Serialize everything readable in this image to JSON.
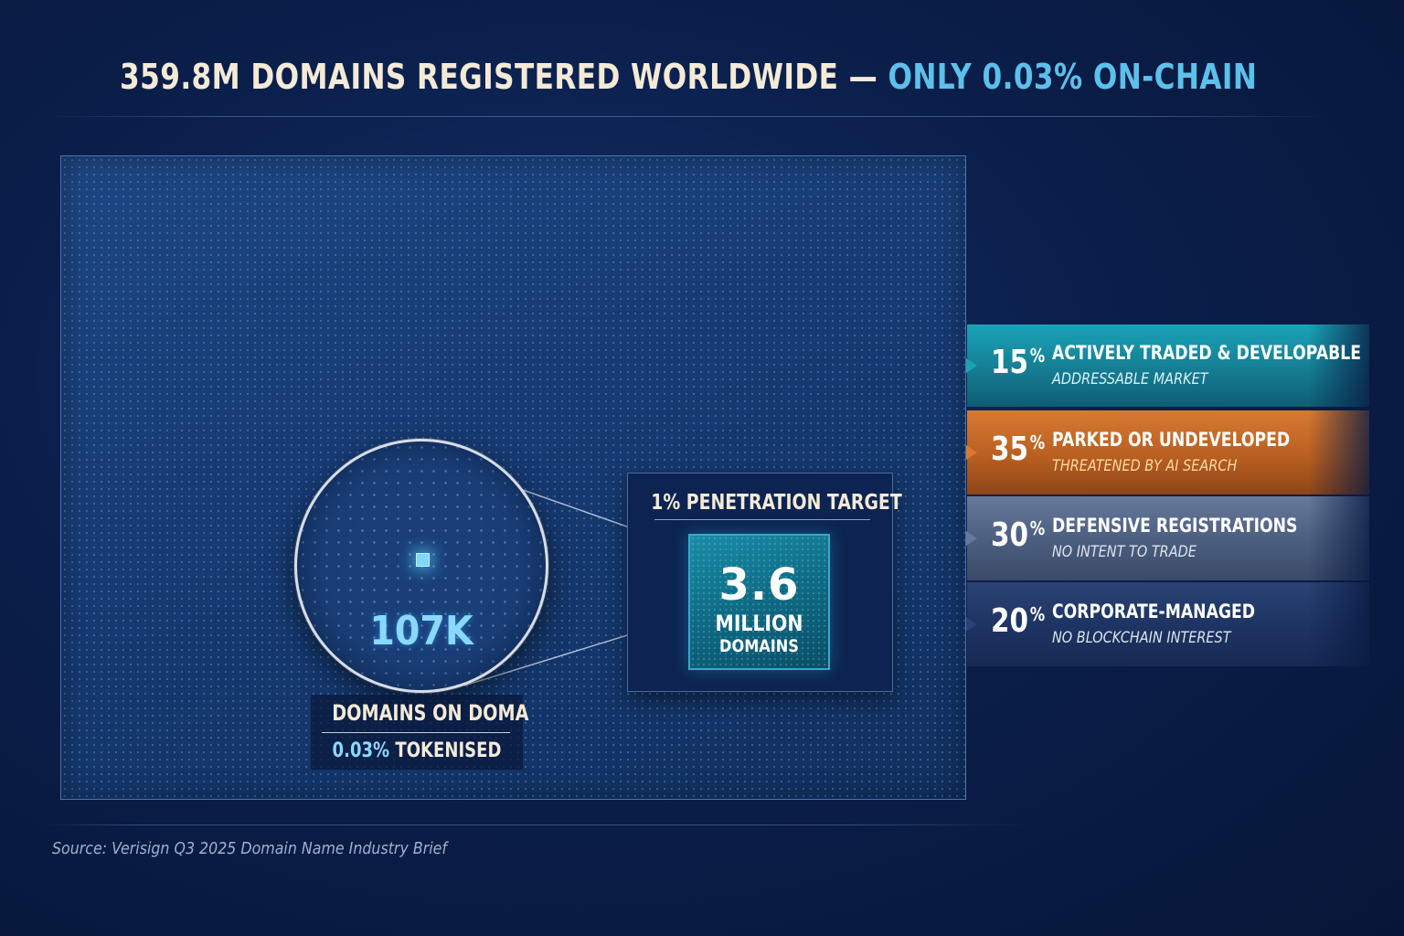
{
  "title": {
    "main": "359.8M DOMAINS REGISTERED WORLDWIDE —",
    "accent": "ONLY 0.03% ON-CHAIN"
  },
  "lens": {
    "value": "107K",
    "label": "DOMAINS ON DOMA",
    "sub_pct": "0.03%",
    "sub_text": "TOKENISED"
  },
  "target": {
    "title": "1% PENETRATION TARGET",
    "value": "3.6",
    "unit": "MILLION",
    "unit2": "DOMAINS"
  },
  "source": "Source: Verisign Q3 2025 Domain Name Industry Brief",
  "colors": {
    "title_main": "#f4ead6",
    "title_accent": "#5cc0ea",
    "tokenised_dot": "#7fd8ff",
    "target_fill": "#0f6d86"
  },
  "chart_data": {
    "type": "bar",
    "categories": [
      "ACTIVELY TRADED & DEVELOPABLE",
      "PARKED OR UNDEVELOPED",
      "DEFENSIVE REGISTRATIONS",
      "CORPORATE-MANAGED"
    ],
    "values": [
      15,
      35,
      30,
      20
    ],
    "unit": "%",
    "subtitles": [
      "ADDRESSABLE MARKET",
      "THREATENED BY AI SEARCH",
      "NO INTENT TO TRADE",
      "NO BLOCKCHAIN INTEREST"
    ],
    "colors": [
      "#1b8ea4",
      "#c4692a",
      "#56698a",
      "#1f3564"
    ],
    "subtitle_colors": [
      "#d8f3f8",
      "#ffd9a0",
      "#dde4ef",
      "#dde4ef"
    ],
    "total_domains": "359.8M",
    "on_chain_domains": "107K",
    "on_chain_pct": "0.03%",
    "target_pct": "1%",
    "target_domains": "3.6 MILLION"
  }
}
